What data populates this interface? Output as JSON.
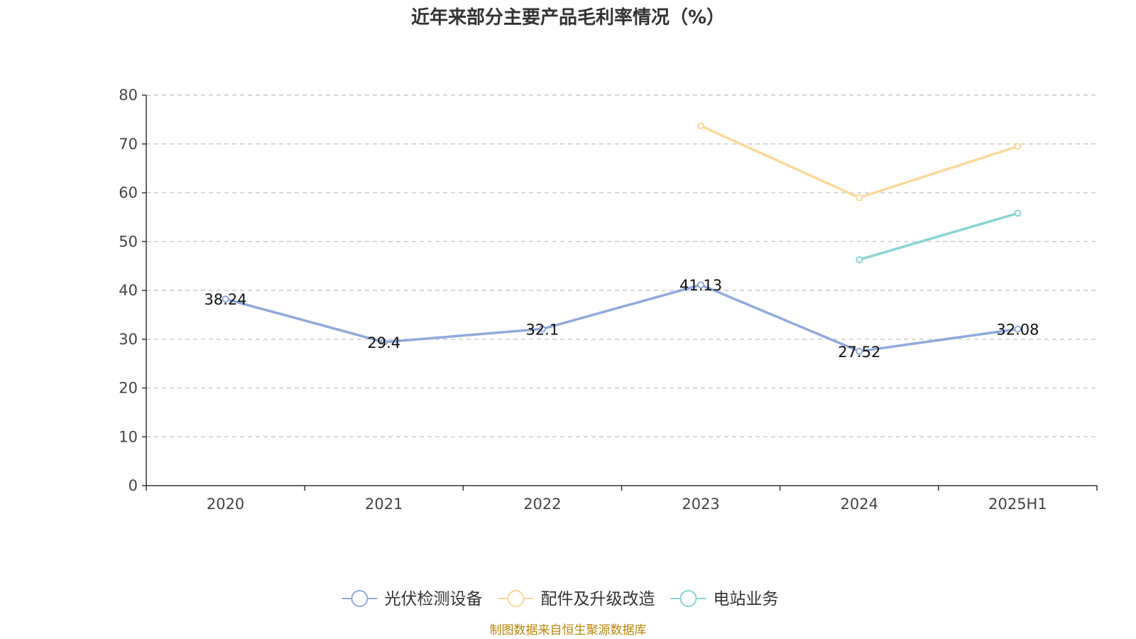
{
  "chart_data": {
    "type": "line",
    "title": "近年来部分主要产品毛利率情况（%）",
    "categories": [
      "2020",
      "2021",
      "2022",
      "2023",
      "2024",
      "2025H1"
    ],
    "ylim": [
      0,
      80
    ],
    "yticks": [
      0,
      10,
      20,
      30,
      40,
      50,
      60,
      70,
      80
    ],
    "grid": true,
    "legend_position": "bottom",
    "series": [
      {
        "name": "光伏检测设备",
        "color": "#8eaadb",
        "values": [
          38.24,
          29.4,
          32.1,
          41.13,
          27.52,
          32.08
        ],
        "labels": [
          "38.24",
          "29.4",
          "32.1",
          "41.13",
          "27.52",
          "32.08"
        ]
      },
      {
        "name": "配件及升级改造",
        "color": "#fbd89a",
        "values": [
          null,
          null,
          null,
          73.7,
          59.0,
          69.5
        ]
      },
      {
        "name": "电站业务",
        "color": "#88d4d4",
        "values": [
          null,
          null,
          null,
          null,
          46.3,
          55.8
        ]
      }
    ]
  },
  "source": "制图数据来自恒生聚源数据库"
}
